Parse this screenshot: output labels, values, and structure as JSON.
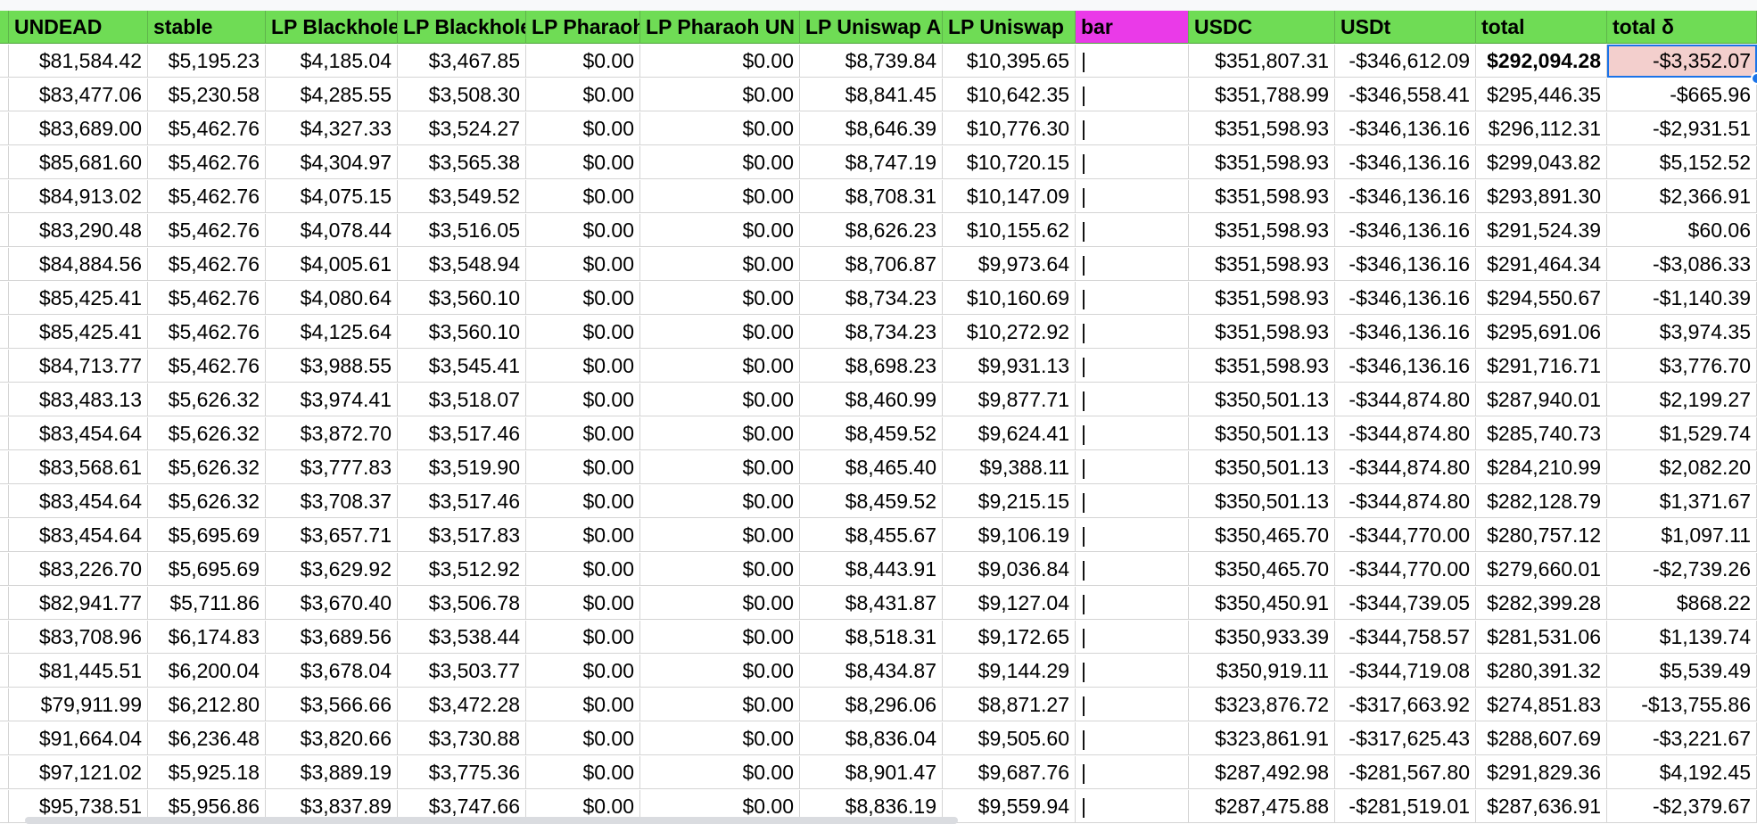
{
  "colors": {
    "header_green": "#6fdc55",
    "header_magenta": "#ea3ae8",
    "selected_cell_bg": "#f3cfcd",
    "selection_blue": "#1a73e8",
    "grid_line": "#d4d4d4"
  },
  "sheet": {
    "headers": [
      "UNDEAD",
      "stable",
      "LP Blackhole",
      "LP Blackhole",
      "LP Pharaoh",
      "LP Pharaoh UN",
      "LP Uniswap A",
      "LP Uniswap",
      "bar",
      "USDC",
      "USDt",
      "total",
      "total δ"
    ],
    "rows": [
      [
        "$81,584.42",
        "$5,195.23",
        "$4,185.04",
        "$3,467.85",
        "$0.00",
        "$0.00",
        "$8,739.84",
        "$10,395.65",
        "|",
        "$351,807.31",
        "-$346,612.09",
        "$292,094.28",
        "-$3,352.07"
      ],
      [
        "$83,477.06",
        "$5,230.58",
        "$4,285.55",
        "$3,508.30",
        "$0.00",
        "$0.00",
        "$8,841.45",
        "$10,642.35",
        "|",
        "$351,788.99",
        "-$346,558.41",
        "$295,446.35",
        "-$665.96"
      ],
      [
        "$83,689.00",
        "$5,462.76",
        "$4,327.33",
        "$3,524.27",
        "$0.00",
        "$0.00",
        "$8,646.39",
        "$10,776.30",
        "|",
        "$351,598.93",
        "-$346,136.16",
        "$296,112.31",
        "-$2,931.51"
      ],
      [
        "$85,681.60",
        "$5,462.76",
        "$4,304.97",
        "$3,565.38",
        "$0.00",
        "$0.00",
        "$8,747.19",
        "$10,720.15",
        "|",
        "$351,598.93",
        "-$346,136.16",
        "$299,043.82",
        "$5,152.52"
      ],
      [
        "$84,913.02",
        "$5,462.76",
        "$4,075.15",
        "$3,549.52",
        "$0.00",
        "$0.00",
        "$8,708.31",
        "$10,147.09",
        "|",
        "$351,598.93",
        "-$346,136.16",
        "$293,891.30",
        "$2,366.91"
      ],
      [
        "$83,290.48",
        "$5,462.76",
        "$4,078.44",
        "$3,516.05",
        "$0.00",
        "$0.00",
        "$8,626.23",
        "$10,155.62",
        "|",
        "$351,598.93",
        "-$346,136.16",
        "$291,524.39",
        "$60.06"
      ],
      [
        "$84,884.56",
        "$5,462.76",
        "$4,005.61",
        "$3,548.94",
        "$0.00",
        "$0.00",
        "$8,706.87",
        "$9,973.64",
        "|",
        "$351,598.93",
        "-$346,136.16",
        "$291,464.34",
        "-$3,086.33"
      ],
      [
        "$85,425.41",
        "$5,462.76",
        "$4,080.64",
        "$3,560.10",
        "$0.00",
        "$0.00",
        "$8,734.23",
        "$10,160.69",
        "|",
        "$351,598.93",
        "-$346,136.16",
        "$294,550.67",
        "-$1,140.39"
      ],
      [
        "$85,425.41",
        "$5,462.76",
        "$4,125.64",
        "$3,560.10",
        "$0.00",
        "$0.00",
        "$8,734.23",
        "$10,272.92",
        "|",
        "$351,598.93",
        "-$346,136.16",
        "$295,691.06",
        "$3,974.35"
      ],
      [
        "$84,713.77",
        "$5,462.76",
        "$3,988.55",
        "$3,545.41",
        "$0.00",
        "$0.00",
        "$8,698.23",
        "$9,931.13",
        "|",
        "$351,598.93",
        "-$346,136.16",
        "$291,716.71",
        "$3,776.70"
      ],
      [
        "$83,483.13",
        "$5,626.32",
        "$3,974.41",
        "$3,518.07",
        "$0.00",
        "$0.00",
        "$8,460.99",
        "$9,877.71",
        "|",
        "$350,501.13",
        "-$344,874.80",
        "$287,940.01",
        "$2,199.27"
      ],
      [
        "$83,454.64",
        "$5,626.32",
        "$3,872.70",
        "$3,517.46",
        "$0.00",
        "$0.00",
        "$8,459.52",
        "$9,624.41",
        "|",
        "$350,501.13",
        "-$344,874.80",
        "$285,740.73",
        "$1,529.74"
      ],
      [
        "$83,568.61",
        "$5,626.32",
        "$3,777.83",
        "$3,519.90",
        "$0.00",
        "$0.00",
        "$8,465.40",
        "$9,388.11",
        "|",
        "$350,501.13",
        "-$344,874.80",
        "$284,210.99",
        "$2,082.20"
      ],
      [
        "$83,454.64",
        "$5,626.32",
        "$3,708.37",
        "$3,517.46",
        "$0.00",
        "$0.00",
        "$8,459.52",
        "$9,215.15",
        "|",
        "$350,501.13",
        "-$344,874.80",
        "$282,128.79",
        "$1,371.67"
      ],
      [
        "$83,454.64",
        "$5,695.69",
        "$3,657.71",
        "$3,517.83",
        "$0.00",
        "$0.00",
        "$8,455.67",
        "$9,106.19",
        "|",
        "$350,465.70",
        "-$344,770.00",
        "$280,757.12",
        "$1,097.11"
      ],
      [
        "$83,226.70",
        "$5,695.69",
        "$3,629.92",
        "$3,512.92",
        "$0.00",
        "$0.00",
        "$8,443.91",
        "$9,036.84",
        "|",
        "$350,465.70",
        "-$344,770.00",
        "$279,660.01",
        "-$2,739.26"
      ],
      [
        "$82,941.77",
        "$5,711.86",
        "$3,670.40",
        "$3,506.78",
        "$0.00",
        "$0.00",
        "$8,431.87",
        "$9,127.04",
        "|",
        "$350,450.91",
        "-$344,739.05",
        "$282,399.28",
        "$868.22"
      ],
      [
        "$83,708.96",
        "$6,174.83",
        "$3,689.56",
        "$3,538.44",
        "$0.00",
        "$0.00",
        "$8,518.31",
        "$9,172.65",
        "|",
        "$350,933.39",
        "-$344,758.57",
        "$281,531.06",
        "$1,139.74"
      ],
      [
        "$81,445.51",
        "$6,200.04",
        "$3,678.04",
        "$3,503.77",
        "$0.00",
        "$0.00",
        "$8,434.87",
        "$9,144.29",
        "|",
        "$350,919.11",
        "-$344,719.08",
        "$280,391.32",
        "$5,539.49"
      ],
      [
        "$79,911.99",
        "$6,212.80",
        "$3,566.66",
        "$3,472.28",
        "$0.00",
        "$0.00",
        "$8,296.06",
        "$8,871.27",
        "|",
        "$323,876.72",
        "-$317,663.92",
        "$274,851.83",
        "-$13,755.86"
      ],
      [
        "$91,664.04",
        "$6,236.48",
        "$3,820.66",
        "$3,730.88",
        "$0.00",
        "$0.00",
        "$8,836.04",
        "$9,505.60",
        "|",
        "$323,861.91",
        "-$317,625.43",
        "$288,607.69",
        "-$3,221.67"
      ],
      [
        "$97,121.02",
        "$5,925.18",
        "$3,889.19",
        "$3,775.36",
        "$0.00",
        "$0.00",
        "$8,901.47",
        "$9,687.76",
        "|",
        "$287,492.98",
        "-$281,567.80",
        "$291,829.36",
        "$4,192.45"
      ],
      [
        "$95,738.51",
        "$5,956.86",
        "$3,837.89",
        "$3,747.66",
        "$0.00",
        "$0.00",
        "$8,836.19",
        "$9,559.94",
        "|",
        "$287,475.88",
        "-$281,519.01",
        "$287,636.91",
        "-$2,379.67"
      ]
    ]
  }
}
